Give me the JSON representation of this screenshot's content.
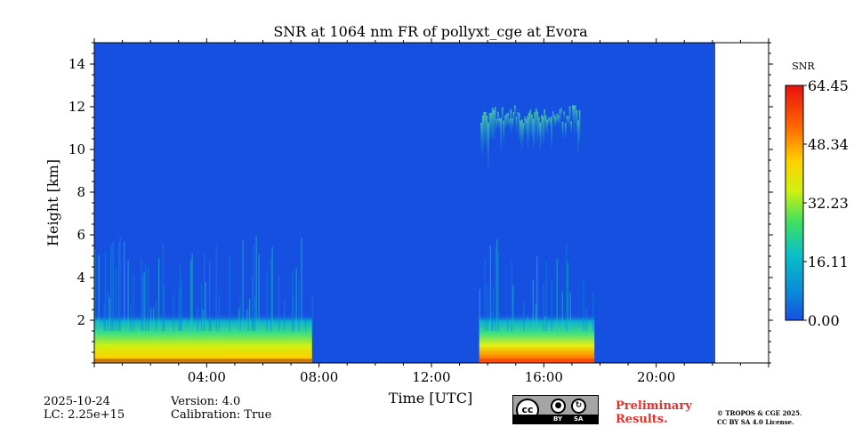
{
  "chart_data": {
    "type": "heatmap",
    "title": "SNR at 1064 nm FR of pollyxt_cge at Evora",
    "xlabel": "Time [UTC]",
    "ylabel": "Height [km]",
    "x_range_hours": [
      0,
      24
    ],
    "xlim": [
      "00:00",
      "24:00"
    ],
    "ylim": [
      0,
      15
    ],
    "x_ticks": [
      "04:00",
      "08:00",
      "12:00",
      "16:00",
      "20:00"
    ],
    "y_ticks": [
      "2",
      "4",
      "6",
      "8",
      "10",
      "12",
      "14"
    ],
    "colorbar": {
      "label": "SNR",
      "min": 0,
      "max": 64.45,
      "ticks": [
        "0.00",
        "16.11",
        "32.23",
        "48.34",
        "64.45"
      ],
      "colormap": "jet"
    },
    "background_color": "#1650e0",
    "data_coverage_end_hours": 22.1,
    "measurement_periods": [
      {
        "start_hours": 0.0,
        "end_hours": 7.75,
        "signal": "strong near-surface signal below ~2 km with scattered aerosol features"
      },
      {
        "start_hours": 13.7,
        "end_hours": 17.8,
        "signal": "strong near-surface signal below ~2 km plus cirrus layer between ~9.5 and ~12 km"
      }
    ],
    "grid": false
  },
  "footer": {
    "date": "2025-10-24",
    "lc": "LC: 2.25e+15",
    "version": "Version: 4.0",
    "calibration": "Calibration: True",
    "preliminary": "Preliminary\nResults.",
    "copyright": "© TROPOS & CGE 2025.\nCC BY SA 4.0 License.",
    "license_badge": {
      "cc": "cc",
      "by": "BY",
      "sa": "SA"
    }
  },
  "colors": {
    "preliminary": "#e8302a",
    "no_signal": "#1650e0"
  }
}
